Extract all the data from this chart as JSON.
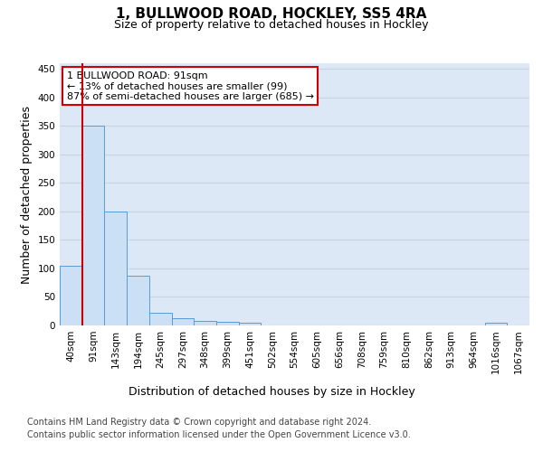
{
  "title": "1, BULLWOOD ROAD, HOCKLEY, SS5 4RA",
  "subtitle": "Size of property relative to detached houses in Hockley",
  "xlabel": "Distribution of detached houses by size in Hockley",
  "ylabel": "Number of detached properties",
  "bins": [
    "40sqm",
    "91sqm",
    "143sqm",
    "194sqm",
    "245sqm",
    "297sqm",
    "348sqm",
    "399sqm",
    "451sqm",
    "502sqm",
    "554sqm",
    "605sqm",
    "656sqm",
    "708sqm",
    "759sqm",
    "810sqm",
    "862sqm",
    "913sqm",
    "964sqm",
    "1016sqm",
    "1067sqm"
  ],
  "values": [
    105,
    350,
    200,
    88,
    22,
    13,
    8,
    7,
    4,
    0,
    0,
    0,
    0,
    0,
    0,
    0,
    0,
    0,
    0,
    4,
    0
  ],
  "bar_color": "#cce0f5",
  "bar_edge_color": "#5b9bd5",
  "vline_color": "#cc0000",
  "annotation_text": "1 BULLWOOD ROAD: 91sqm\n← 13% of detached houses are smaller (99)\n87% of semi-detached houses are larger (685) →",
  "annotation_box_color": "#ffffff",
  "annotation_box_edge": "#cc0000",
  "ylim": [
    0,
    460
  ],
  "yticks": [
    0,
    50,
    100,
    150,
    200,
    250,
    300,
    350,
    400,
    450
  ],
  "grid_color": "#c8d4e0",
  "bg_color": "#dce8f5",
  "footer1": "Contains HM Land Registry data © Crown copyright and database right 2024.",
  "footer2": "Contains public sector information licensed under the Open Government Licence v3.0.",
  "title_fontsize": 11,
  "subtitle_fontsize": 9,
  "label_fontsize": 9,
  "tick_fontsize": 7.5,
  "footer_fontsize": 7
}
